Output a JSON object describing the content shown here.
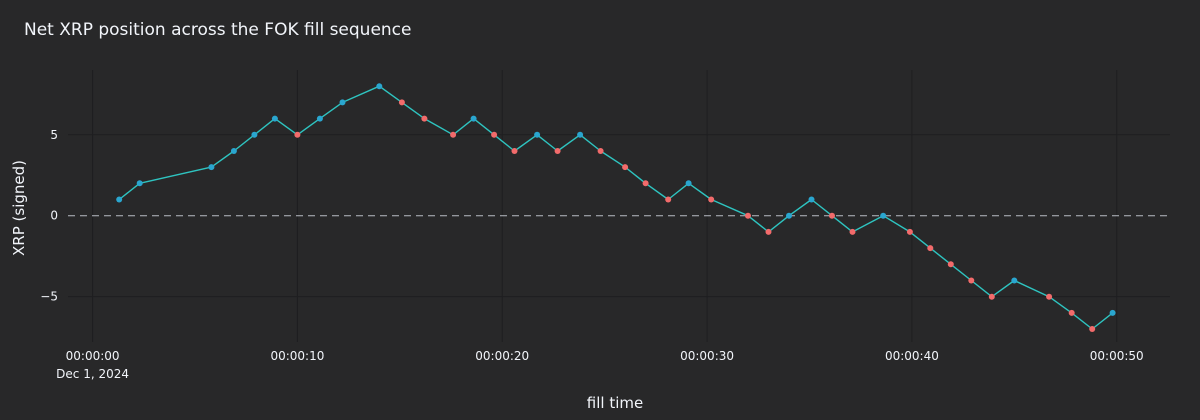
{
  "chart_data": {
    "type": "line",
    "title": "Net XRP position across the FOK fill sequence",
    "xlabel": "fill time",
    "ylabel": "XRP (signed)",
    "x_ticks": [
      {
        "t": 0,
        "label": "00:00:00",
        "sublabel": "Dec 1, 2024"
      },
      {
        "t": 10,
        "label": "00:00:10"
      },
      {
        "t": 20,
        "label": "00:00:20"
      },
      {
        "t": 30,
        "label": "00:00:30"
      },
      {
        "t": 40,
        "label": "00:00:40"
      },
      {
        "t": 50,
        "label": "00:00:50"
      }
    ],
    "y_ticks": [
      {
        "v": 5,
        "label": "5"
      },
      {
        "v": 0,
        "label": "0"
      },
      {
        "v": -5,
        "label": "−5"
      }
    ],
    "xlim_seconds": [
      -1.2,
      52.6
    ],
    "ylim": [
      -7.8,
      9.0
    ],
    "zero_line": "dashed",
    "colors": {
      "background": "#282829",
      "grid": "#1e1e20",
      "zeroline": "#b8bcc4",
      "line": "#2ec4c0",
      "buy": "#2aa6cf",
      "sell": "#f26b6b",
      "text": "#f2f5fa"
    },
    "series": [
      {
        "points": [
          {
            "t": 1.3,
            "y": 1,
            "side": "buy"
          },
          {
            "t": 2.3,
            "y": 2,
            "side": "buy"
          },
          {
            "t": 5.8,
            "y": 3,
            "side": "buy"
          },
          {
            "t": 6.9,
            "y": 4,
            "side": "buy"
          },
          {
            "t": 7.9,
            "y": 5,
            "side": "buy"
          },
          {
            "t": 8.9,
            "y": 6,
            "side": "buy"
          },
          {
            "t": 10.0,
            "y": 5,
            "side": "sell"
          },
          {
            "t": 11.1,
            "y": 6,
            "side": "buy"
          },
          {
            "t": 12.2,
            "y": 7,
            "side": "buy"
          },
          {
            "t": 14.0,
            "y": 8,
            "side": "buy"
          },
          {
            "t": 15.1,
            "y": 7,
            "side": "sell"
          },
          {
            "t": 16.2,
            "y": 6,
            "side": "sell"
          },
          {
            "t": 17.6,
            "y": 5,
            "side": "sell"
          },
          {
            "t": 18.6,
            "y": 6,
            "side": "buy"
          },
          {
            "t": 19.6,
            "y": 5,
            "side": "sell"
          },
          {
            "t": 20.6,
            "y": 4,
            "side": "sell"
          },
          {
            "t": 21.7,
            "y": 5,
            "side": "buy"
          },
          {
            "t": 22.7,
            "y": 4,
            "side": "sell"
          },
          {
            "t": 23.8,
            "y": 5,
            "side": "buy"
          },
          {
            "t": 24.8,
            "y": 4,
            "side": "sell"
          },
          {
            "t": 26.0,
            "y": 3,
            "side": "sell"
          },
          {
            "t": 27.0,
            "y": 2,
            "side": "sell"
          },
          {
            "t": 28.1,
            "y": 1,
            "side": "sell"
          },
          {
            "t": 29.1,
            "y": 2,
            "side": "buy"
          },
          {
            "t": 30.2,
            "y": 1,
            "side": "sell"
          },
          {
            "t": 32.0,
            "y": 0,
            "side": "sell"
          },
          {
            "t": 33.0,
            "y": -1,
            "side": "sell"
          },
          {
            "t": 34.0,
            "y": 0,
            "side": "buy"
          },
          {
            "t": 35.1,
            "y": 1,
            "side": "buy"
          },
          {
            "t": 36.1,
            "y": 0,
            "side": "sell"
          },
          {
            "t": 37.1,
            "y": -1,
            "side": "sell"
          },
          {
            "t": 38.6,
            "y": 0,
            "side": "buy"
          },
          {
            "t": 39.9,
            "y": -1,
            "side": "sell"
          },
          {
            "t": 40.9,
            "y": -2,
            "side": "sell"
          },
          {
            "t": 41.9,
            "y": -3,
            "side": "sell"
          },
          {
            "t": 42.9,
            "y": -4,
            "side": "sell"
          },
          {
            "t": 43.9,
            "y": -5,
            "side": "sell"
          },
          {
            "t": 45.0,
            "y": -4,
            "side": "buy"
          },
          {
            "t": 46.7,
            "y": -5,
            "side": "sell"
          },
          {
            "t": 47.8,
            "y": -6,
            "side": "sell"
          },
          {
            "t": 48.8,
            "y": -7,
            "side": "sell"
          },
          {
            "t": 49.8,
            "y": -6,
            "side": "buy"
          }
        ]
      }
    ]
  }
}
